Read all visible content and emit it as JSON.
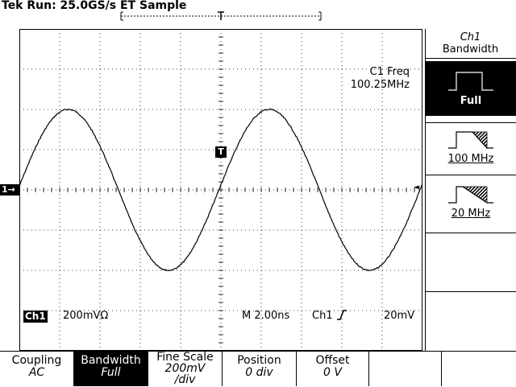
{
  "status": {
    "title": "Tek Run: 25.0GS/s ET Sample"
  },
  "measurement": {
    "label": "C1 Freq",
    "value": "100.25MHz"
  },
  "readout": {
    "channel_badge": "Ch1",
    "channel_scale": "200mVΩ",
    "timebase": "M 2.00ns",
    "trigger_source": "Ch1",
    "trigger_slope_icon": "rising-edge-icon",
    "trigger_level": "20mV"
  },
  "markers": {
    "channel_marker": "1→",
    "trigger_marker": "T",
    "trigger_level_arrow": "◄"
  },
  "side_menu": {
    "title_line1": "Ch1",
    "title_line2": "Bandwidth",
    "options": [
      {
        "label": "Full",
        "selected": true
      },
      {
        "label": "100 MHz",
        "selected": false
      },
      {
        "label": "20 MHz",
        "selected": false
      }
    ]
  },
  "bottom_menu": [
    {
      "label": "Coupling",
      "value": "AC",
      "active": false
    },
    {
      "label": "Bandwidth",
      "value": "Full",
      "active": true
    },
    {
      "label": "Fine Scale",
      "value": "200mV",
      "value2": "/div",
      "active": false
    },
    {
      "label": "Position",
      "value": "0 div",
      "active": false
    },
    {
      "label": "Offset",
      "value": "0 V",
      "active": false
    },
    {
      "label": "",
      "value": "",
      "active": false
    },
    {
      "label": "",
      "value": "",
      "active": false
    }
  ],
  "waveform": {
    "frequency_mhz": 100.25,
    "amplitude_div": 2.0,
    "offset_div": 0.0,
    "time_per_div_ns": 2.0,
    "phase_div": -0.05,
    "grid": true,
    "divisions_x": 10,
    "divisions_y": 8
  }
}
